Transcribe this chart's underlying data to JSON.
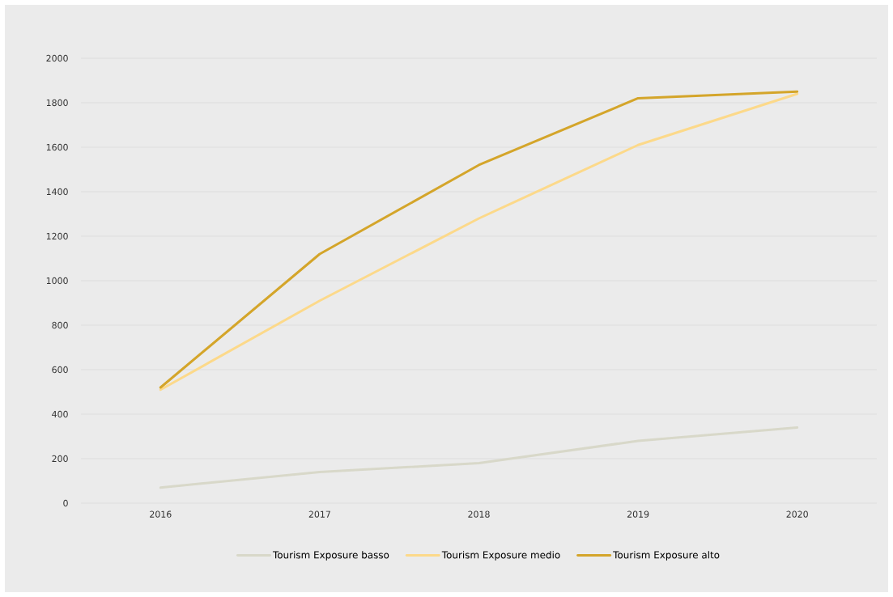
{
  "chart_data": {
    "type": "line",
    "categories": [
      "2016",
      "2017",
      "2018",
      "2019",
      "2020"
    ],
    "series": [
      {
        "name": "Tourism Exposure basso",
        "color": "#d8d8c9",
        "values": [
          70,
          140,
          180,
          280,
          340
        ]
      },
      {
        "name": "Tourism Exposure medio",
        "color": "#fcd98a",
        "values": [
          510,
          910,
          1280,
          1610,
          1840
        ]
      },
      {
        "name": "Tourism Exposure alto",
        "color": "#d4a52a",
        "values": [
          520,
          1120,
          1520,
          1820,
          1850
        ]
      }
    ],
    "ylim": [
      0,
      2000
    ],
    "yticks": [
      0,
      200,
      400,
      600,
      800,
      1000,
      1200,
      1400,
      1600,
      1800,
      2000
    ],
    "grid": "y",
    "legend": "bottom",
    "marker": "none",
    "line_style": "solid"
  }
}
